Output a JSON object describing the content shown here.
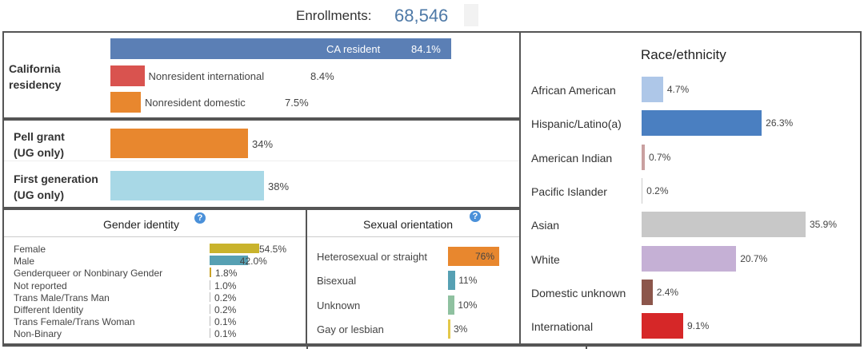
{
  "header": {
    "label": "Enrollments:",
    "value": "68,546"
  },
  "residency": {
    "title_line1": "California",
    "title_line2": "residency",
    "bars": [
      {
        "name": "CA resident",
        "value": 84.1,
        "label": "84.1%",
        "color": "#5b7fb5"
      },
      {
        "name": "Nonresident international",
        "value": 8.4,
        "label": "8.4%",
        "color": "#d9534f"
      },
      {
        "name": "Nonresident domestic",
        "value": 7.5,
        "label": "7.5%",
        "color": "#e8872e"
      }
    ]
  },
  "pell": {
    "title_line1": "Pell grant",
    "title_line2": "(UG only)",
    "value": 34,
    "label": "34%",
    "color": "#e8872e"
  },
  "firstgen": {
    "title_line1": "First generation",
    "title_line2": "(UG only)",
    "value": 38,
    "label": "38%",
    "color": "#a8d8e6"
  },
  "gender": {
    "title": "Gender identity",
    "help": "?",
    "items": [
      {
        "name": "Female",
        "value": 54.5,
        "label": "54.5%",
        "color": "#c9b32c"
      },
      {
        "name": "Male",
        "value": 42.0,
        "label": "42.0%",
        "color": "#56a0b3"
      },
      {
        "name": "Genderqueer or Nonbinary Gender",
        "value": 1.8,
        "label": "1.8%",
        "color": "#c9a227"
      },
      {
        "name": "Not reported",
        "value": 1.0,
        "label": "1.0%",
        "color": "#bbbbbb"
      },
      {
        "name": "Trans Male/Trans Man",
        "value": 0.2,
        "label": "0.2%",
        "color": "#bbbbbb"
      },
      {
        "name": "Different Identity",
        "value": 0.2,
        "label": "0.2%",
        "color": "#bbbbbb"
      },
      {
        "name": "Trans Female/Trans Woman",
        "value": 0.1,
        "label": "0.1%",
        "color": "#bbbbbb"
      },
      {
        "name": "Non-Binary",
        "value": 0.1,
        "label": "0.1%",
        "color": "#bbbbbb"
      }
    ]
  },
  "orientation": {
    "title": "Sexual orientation",
    "help": "?",
    "items": [
      {
        "name": "Heterosexual or straight",
        "value": 76,
        "label": "76%",
        "color": "#e8872e"
      },
      {
        "name": "Bisexual",
        "value": 11,
        "label": "11%",
        "color": "#56a0b3"
      },
      {
        "name": "Unknown",
        "value": 10,
        "label": "10%",
        "color": "#8fc1a0"
      },
      {
        "name": "Gay or lesbian",
        "value": 3,
        "label": "3%",
        "color": "#e3c84a"
      }
    ]
  },
  "chart_data": {
    "type": "bar",
    "title": "Race/ethnicity",
    "categories": [
      "African American",
      "Hispanic/Latino(a)",
      "American Indian",
      "Pacific Islander",
      "Asian",
      "White",
      "Domestic unknown",
      "International"
    ],
    "values": [
      4.7,
      26.3,
      0.7,
      0.2,
      35.9,
      20.7,
      2.4,
      9.1
    ],
    "labels": [
      "4.7%",
      "26.3%",
      "0.7%",
      "0.2%",
      "35.9%",
      "20.7%",
      "2.4%",
      "9.1%"
    ],
    "colors": [
      "#aec7e8",
      "#4a7fc1",
      "#c9a0a0",
      "#cccccc",
      "#c8c8c8",
      "#c5b0d5",
      "#8c564b",
      "#d62728"
    ]
  }
}
